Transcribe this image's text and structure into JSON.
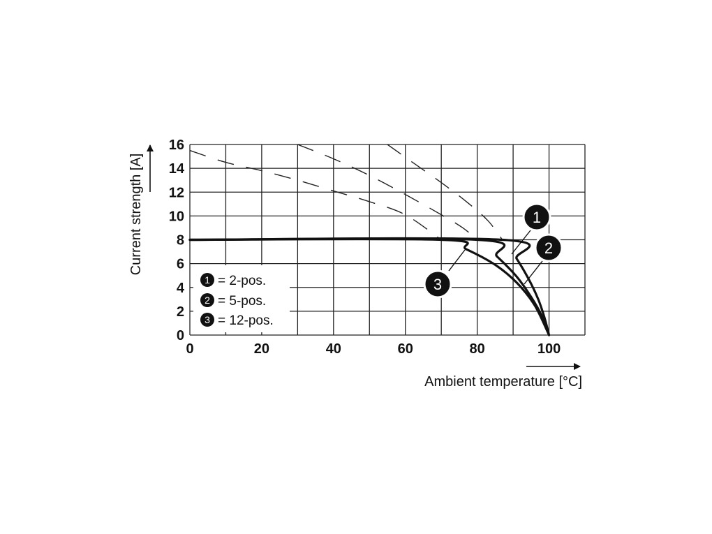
{
  "chart_data": {
    "type": "line",
    "title": "",
    "xlabel": "Ambient temperature [°C]",
    "ylabel": "Current strength [A]",
    "xlim": [
      0,
      110
    ],
    "ylim": [
      0,
      16
    ],
    "x_ticks": [
      0,
      20,
      40,
      60,
      80,
      100
    ],
    "y_ticks": [
      0,
      2,
      4,
      6,
      8,
      10,
      12,
      14,
      16
    ],
    "grid": true,
    "limit_value": 8,
    "series": [
      {
        "name": "2-pos.",
        "marker": "1",
        "solid": [
          [
            0,
            8
          ],
          [
            87,
            8
          ],
          [
            91,
            6.4
          ],
          [
            94.5,
            4.6
          ],
          [
            97,
            3.0
          ],
          [
            98.7,
            1.5
          ],
          [
            100,
            0
          ]
        ],
        "dashed": [
          [
            55,
            16
          ],
          [
            62,
            14.5
          ],
          [
            70,
            12.8
          ],
          [
            77,
            11.2
          ],
          [
            83,
            9.6
          ],
          [
            87,
            8
          ]
        ]
      },
      {
        "name": "5-pos.",
        "marker": "2",
        "solid": [
          [
            0,
            8
          ],
          [
            80,
            8
          ],
          [
            85.5,
            6.6
          ],
          [
            91,
            4.9
          ],
          [
            95,
            3.2
          ],
          [
            98,
            1.6
          ],
          [
            100,
            0
          ]
        ],
        "dashed": [
          [
            30,
            16
          ],
          [
            40,
            14.8
          ],
          [
            50,
            13.4
          ],
          [
            60,
            11.8
          ],
          [
            70,
            10.1
          ],
          [
            76,
            9.0
          ],
          [
            80,
            8
          ]
        ]
      },
      {
        "name": "12-pos.",
        "marker": "3",
        "solid": [
          [
            0,
            8
          ],
          [
            70,
            8
          ],
          [
            77,
            7.2
          ],
          [
            85,
            5.9
          ],
          [
            91,
            4.4
          ],
          [
            96,
            2.5
          ],
          [
            100,
            0
          ]
        ],
        "dashed": [
          [
            0,
            15.5
          ],
          [
            10,
            14.5
          ],
          [
            20,
            13.8
          ],
          [
            30,
            13.0
          ],
          [
            40,
            12.1
          ],
          [
            50,
            11.2
          ],
          [
            60,
            10.1
          ],
          [
            70,
            8
          ]
        ]
      }
    ],
    "legend": {
      "placement": "bottom-left",
      "entries": [
        {
          "marker": "1",
          "text": "= 2-pos."
        },
        {
          "marker": "2",
          "text": "= 5-pos."
        },
        {
          "marker": "3",
          "text": "= 12-pos."
        }
      ]
    },
    "callouts": [
      {
        "marker": "1",
        "series": 0
      },
      {
        "marker": "2",
        "series": 1
      },
      {
        "marker": "3",
        "series": 2
      }
    ]
  }
}
